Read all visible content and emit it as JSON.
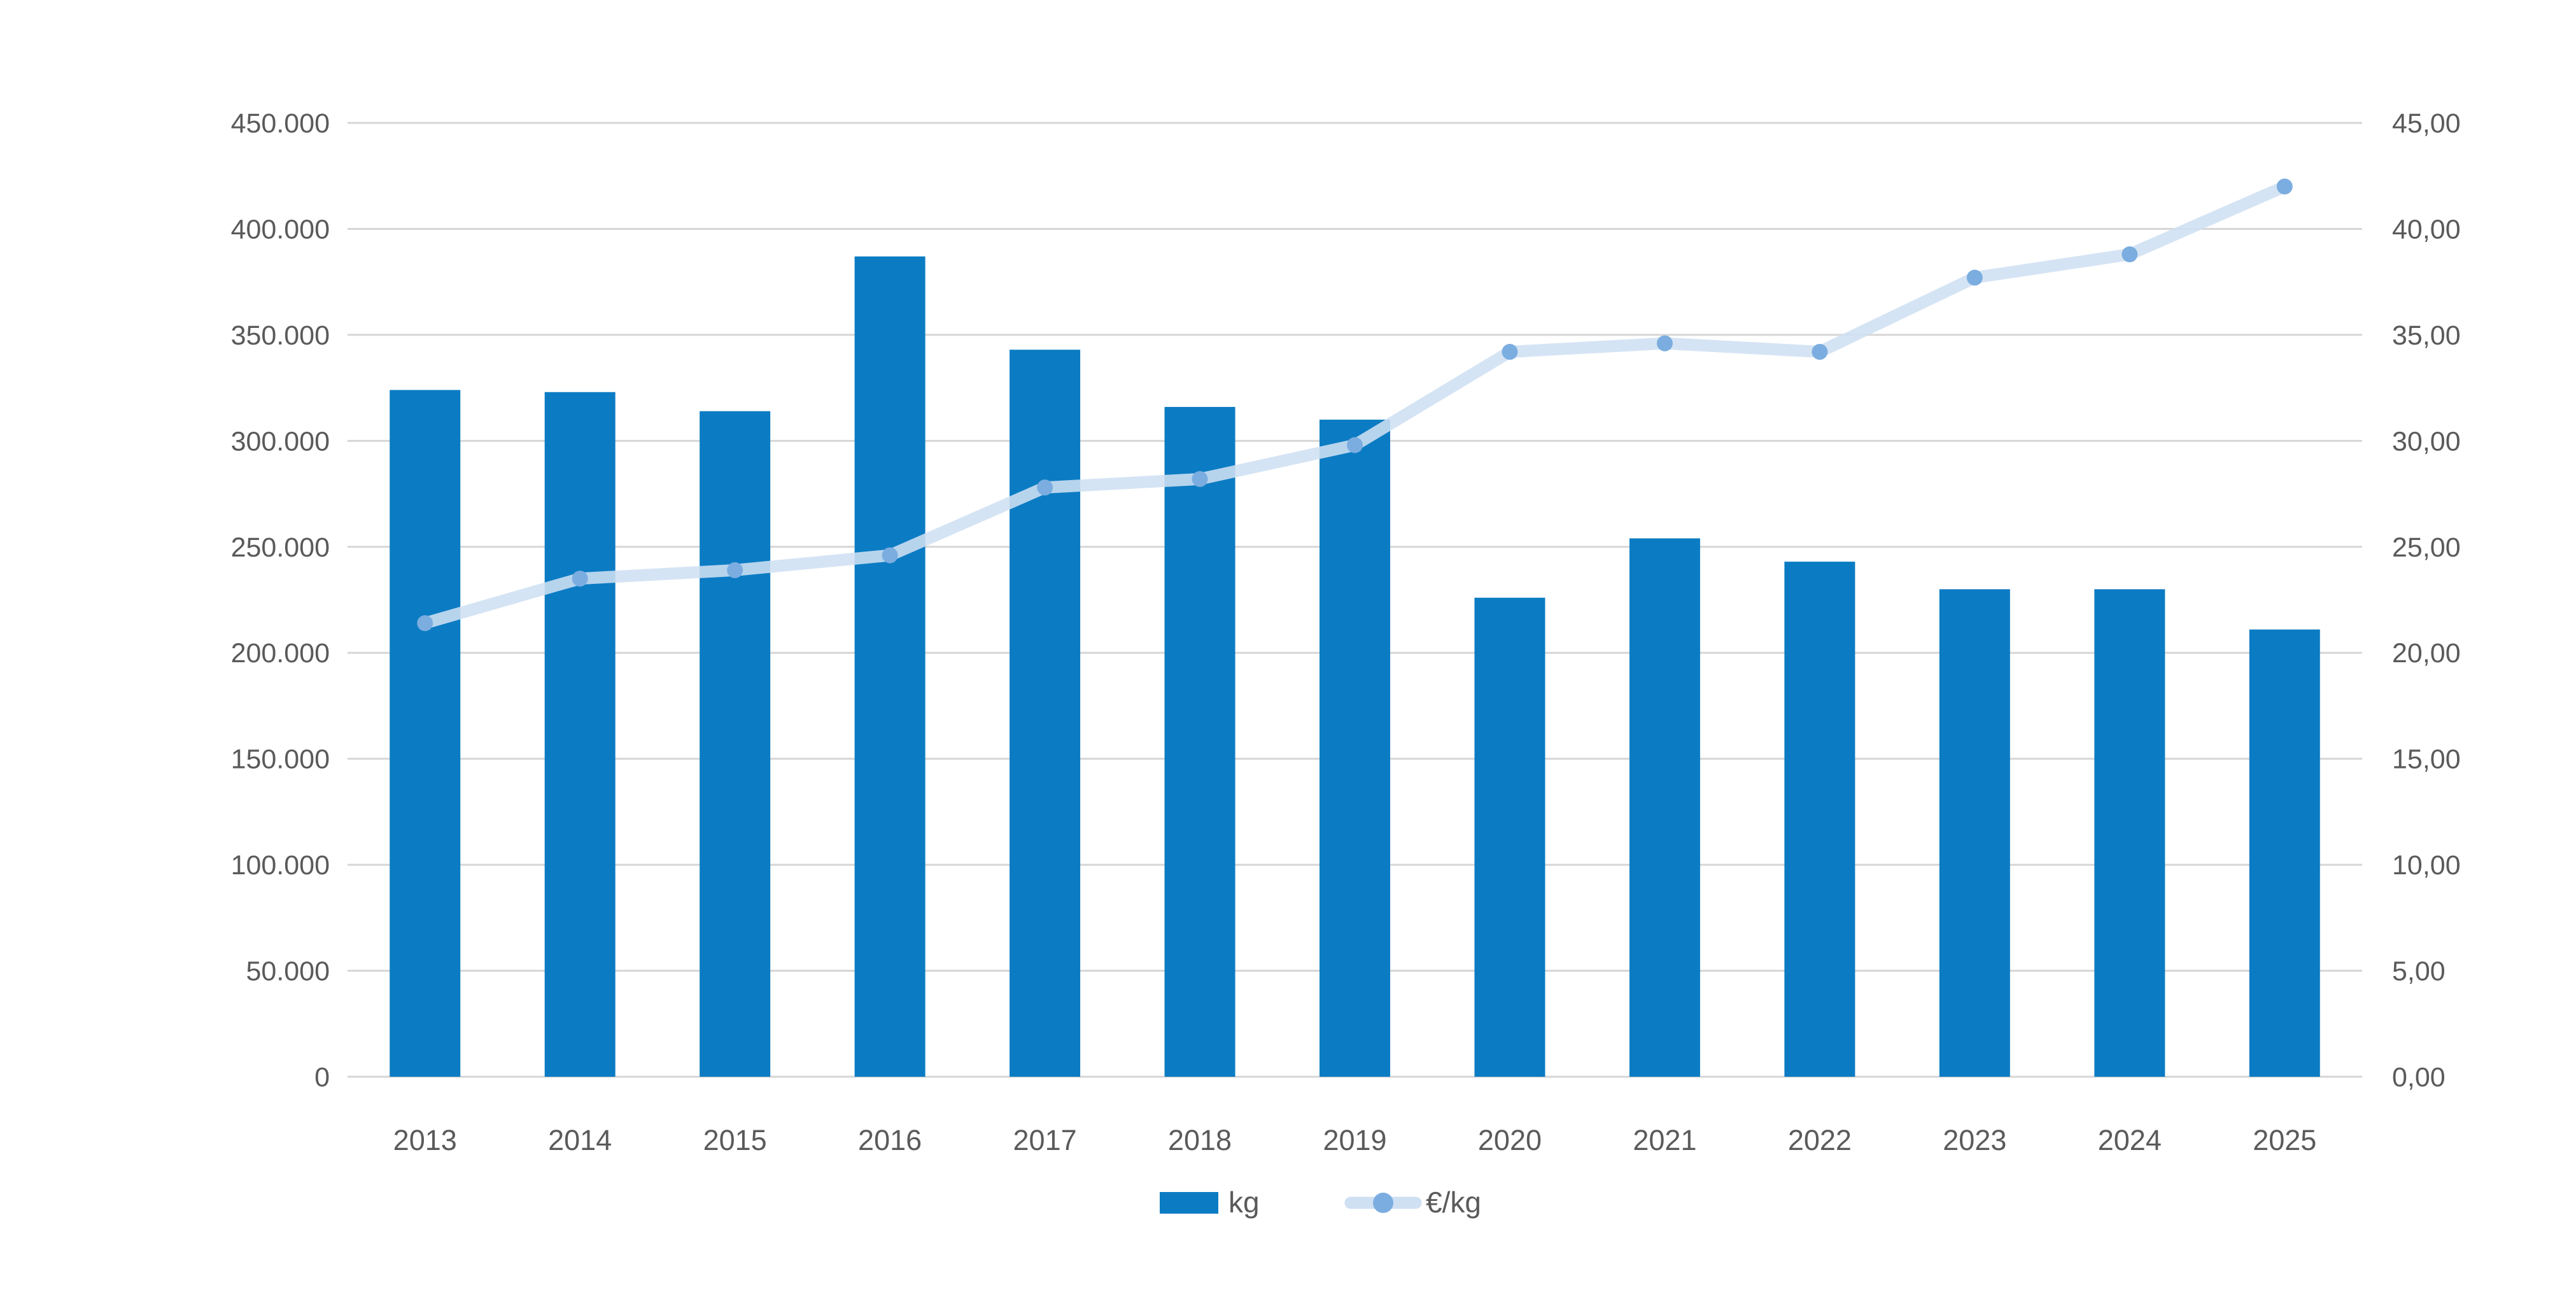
{
  "page": {
    "background": "#ffffff",
    "title": ""
  },
  "colors": {
    "bar": "#0b7cc3",
    "line": "#cfe0f3",
    "marker": "#7cade0",
    "grid": "#d6d6d6",
    "text": "#5a5a5a",
    "background": "#ffffff"
  },
  "legend": {
    "kg_label": "kg",
    "eur_per_kg_label": "€/kg"
  },
  "chart_data": {
    "type": "bar",
    "subtype": "combo-bar-line-dual-axis",
    "title": "",
    "xlabel": "",
    "ylabel_left": "",
    "ylabel_right": "",
    "grid": true,
    "legend_position": "bottom",
    "categories": [
      "2013",
      "2014",
      "2015",
      "2016",
      "2017",
      "2018",
      "2019",
      "2020",
      "2021",
      "2022",
      "2023",
      "2024",
      "2025"
    ],
    "series": [
      {
        "name": "kg",
        "type": "bar",
        "axis": "left",
        "color": "#0b7cc3",
        "values": [
          324000,
          323000,
          314000,
          387000,
          343000,
          316000,
          310000,
          226000,
          254000,
          243000,
          230000,
          230000,
          211000
        ]
      },
      {
        "name": "€/kg",
        "type": "line",
        "axis": "right",
        "color": "#cfe0f3",
        "marker_color": "#7cade0",
        "values": [
          21.4,
          23.5,
          23.9,
          24.6,
          27.8,
          28.2,
          29.8,
          34.2,
          34.6,
          34.2,
          37.7,
          38.8,
          42.0
        ]
      }
    ],
    "left_axis": {
      "min": 0,
      "max": 450000,
      "step": 50000,
      "tick_labels": [
        "450.000",
        "400.000",
        "350.000",
        "300.000",
        "250.000",
        "200.000",
        "150.000",
        "100.000",
        "50.000",
        "0"
      ]
    },
    "right_axis": {
      "min": 0,
      "max": 45,
      "step": 5,
      "tick_labels": [
        "45,00",
        "40,00",
        "35,00",
        "30,00",
        "25,00",
        "20,00",
        "15,00",
        "10,00",
        "5,00",
        "0,00"
      ]
    }
  }
}
